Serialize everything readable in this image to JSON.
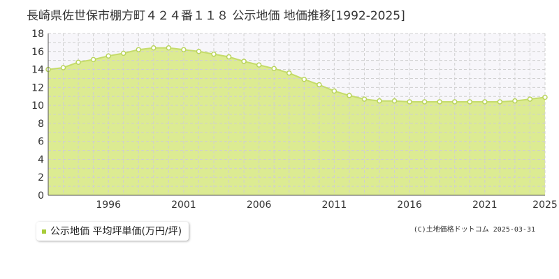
{
  "colors": {
    "fill": "#dceb92",
    "line": "#c5dc6a",
    "marker_stroke": "#b9d45c",
    "marker_fill": "#ffffff",
    "plot_bg": "#f7f6fa",
    "grid": "#d0d0d0",
    "legend_swatch": "#a8cc3a"
  },
  "legend": {
    "label": "公示地価 平均坪単価(万円/坪)"
  },
  "copyright": "(C)土地価格ドットコム 2025-03-31",
  "chart_data": {
    "type": "area",
    "title": "長崎県佐世保市棚方町４２４番１１８ 公示地価 地価推移[1992-2025]",
    "xlabel": "",
    "ylabel": "",
    "xlim": [
      1992,
      2025
    ],
    "ylim": [
      0,
      18
    ],
    "x_ticks": [
      1996,
      2001,
      2006,
      2011,
      2016,
      2021,
      2025
    ],
    "y_ticks": [
      0,
      2,
      4,
      6,
      8,
      10,
      12,
      14,
      16,
      18
    ],
    "grid": true,
    "legend_position": "bottom-left",
    "series": [
      {
        "name": "公示地価 平均坪単価(万円/坪)",
        "x": [
          1992,
          1993,
          1994,
          1995,
          1996,
          1997,
          1998,
          1999,
          2000,
          2001,
          2002,
          2003,
          2004,
          2005,
          2006,
          2007,
          2008,
          2009,
          2010,
          2011,
          2012,
          2013,
          2014,
          2015,
          2016,
          2017,
          2018,
          2019,
          2020,
          2021,
          2022,
          2023,
          2024,
          2025
        ],
        "values": [
          14.0,
          14.2,
          14.8,
          15.1,
          15.5,
          15.8,
          16.2,
          16.4,
          16.4,
          16.2,
          16.0,
          15.7,
          15.4,
          14.9,
          14.5,
          14.1,
          13.6,
          12.9,
          12.3,
          11.6,
          11.1,
          10.7,
          10.5,
          10.5,
          10.4,
          10.4,
          10.4,
          10.4,
          10.4,
          10.4,
          10.4,
          10.5,
          10.7,
          10.9
        ]
      }
    ]
  }
}
